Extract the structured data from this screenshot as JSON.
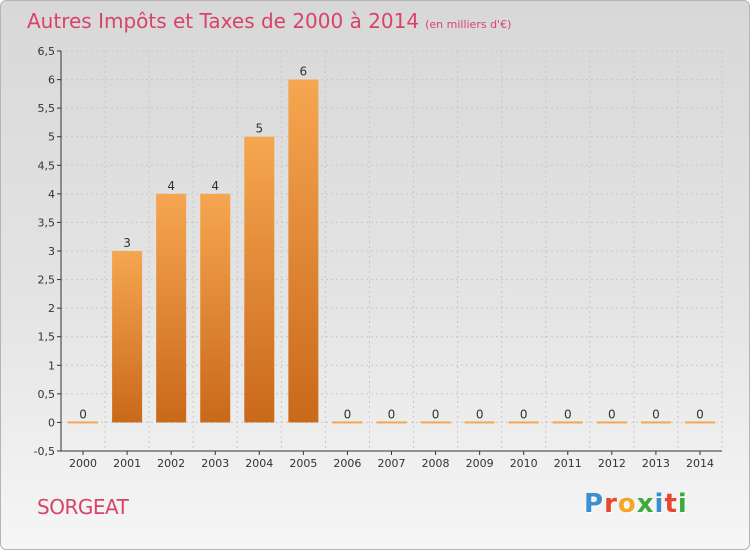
{
  "title": "Autres Impôts et Taxes de 2000 à 2014",
  "subtitle": "(en milliers d'€)",
  "place_name": "SORGEAT",
  "logo_text": "Proxiti",
  "colors": {
    "title": "#d8436b",
    "bar_light": "#f6a650",
    "bar_dark": "#c9691a",
    "axis": "#333333",
    "grid": "#c8c8c8",
    "logo": [
      "#3a8fd1",
      "#e8462e",
      "#f5a623",
      "#3cab3a",
      "#3a8fd1",
      "#e8462e",
      "#3cab3a"
    ]
  },
  "chart_data": {
    "type": "bar",
    "categories": [
      "2000",
      "2001",
      "2002",
      "2003",
      "2004",
      "2005",
      "2006",
      "2007",
      "2008",
      "2009",
      "2010",
      "2011",
      "2012",
      "2013",
      "2014"
    ],
    "values": [
      0,
      3,
      4,
      4,
      5,
      6,
      0,
      0,
      0,
      0,
      0,
      0,
      0,
      0,
      0
    ],
    "title": "Autres Impôts et Taxes de 2000 à 2014",
    "subtitle": "(en milliers d'€)",
    "xlabel": "",
    "ylabel": "",
    "ylim": [
      -0.5,
      6.5
    ],
    "yticks": [
      "-0,5",
      "0",
      "0,5",
      "1",
      "1,5",
      "2",
      "2,5",
      "3",
      "3,5",
      "4",
      "4,5",
      "5",
      "5,5",
      "6",
      "6,5"
    ],
    "ytick_values": [
      -0.5,
      0,
      0.5,
      1,
      1.5,
      2,
      2.5,
      3,
      3.5,
      4,
      4.5,
      5,
      5.5,
      6,
      6.5
    ],
    "grid": true,
    "data_labels": true
  }
}
